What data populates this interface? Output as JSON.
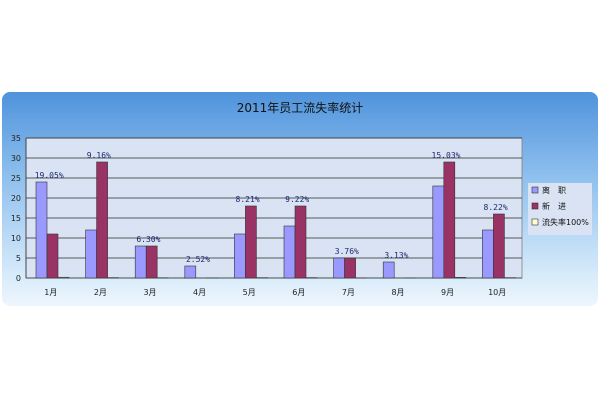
{
  "chart_data": {
    "type": "bar",
    "title": "2011年员工流失率统计",
    "categories": [
      "1月",
      "2月",
      "3月",
      "4月",
      "5月",
      "6月",
      "7月",
      "8月",
      "9月",
      "10月"
    ],
    "series": [
      {
        "name": "离　职",
        "values": [
          24,
          12,
          8,
          3,
          11,
          13,
          5,
          4,
          23,
          12
        ],
        "color": "#9999ff"
      },
      {
        "name": "新　进",
        "values": [
          11,
          29,
          8,
          0,
          18,
          18,
          5,
          0,
          29,
          16
        ],
        "color": "#993366"
      },
      {
        "name": "流失率100%",
        "values": [
          0.19,
          0.09,
          0.06,
          0.03,
          0.08,
          0.09,
          0.04,
          0.03,
          0.15,
          0.08
        ],
        "color": "#ffffcc"
      }
    ],
    "data_labels": [
      "19.05%",
      "9.16%",
      "6.30%",
      "2.52%",
      "8.21%",
      "9.22%",
      "3.76%",
      "3.13%",
      "15.03%",
      "8.22%"
    ],
    "yticks": [
      0,
      5,
      10,
      15,
      20,
      25,
      30,
      35
    ],
    "ylim": [
      0,
      35
    ],
    "grid": true,
    "legend": "right"
  }
}
